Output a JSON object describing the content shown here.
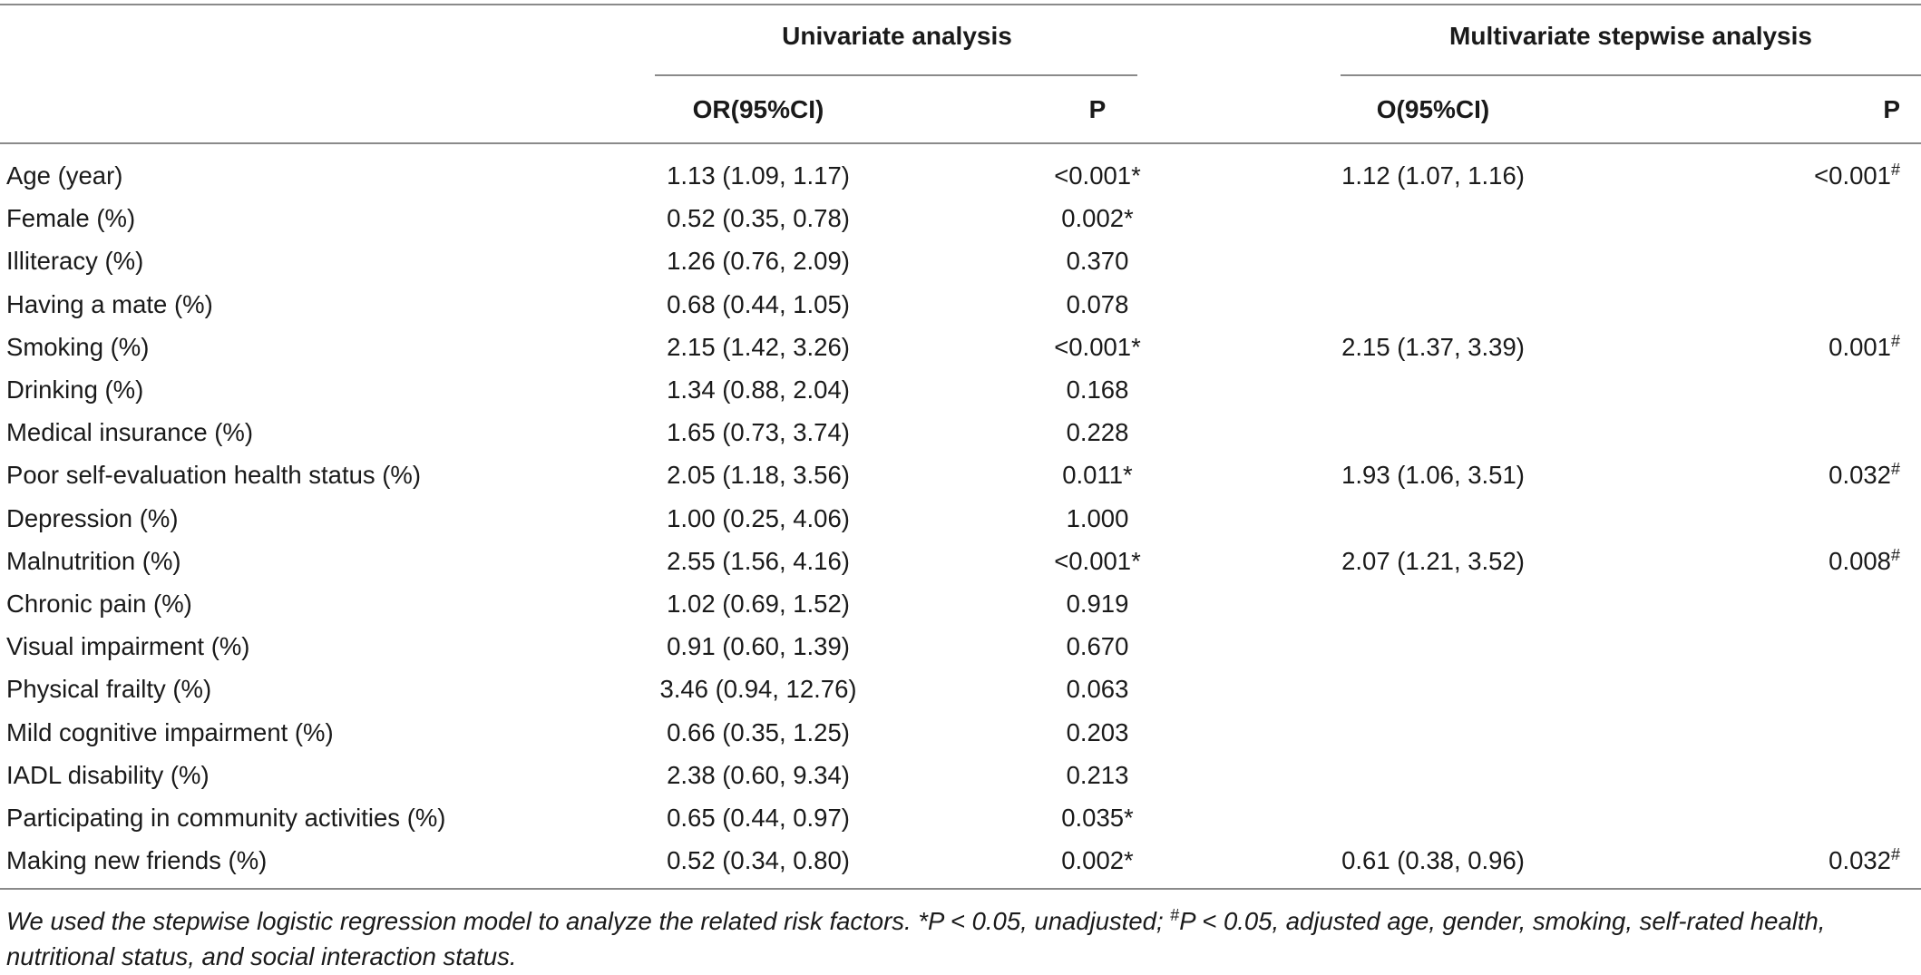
{
  "header": {
    "univariate_title": "Univariate analysis",
    "multivariate_title": "Multivariate stepwise analysis",
    "uni_or_label": "OR(95%CI)",
    "uni_p_label": "P",
    "multi_or_label": "O(95%CI)",
    "multi_p_label": "P"
  },
  "rows": [
    {
      "variable": "Age (year)",
      "uni_or": "1.13 (1.09, 1.17)",
      "uni_p": "<0.001*",
      "multi_or": "1.12 (1.07, 1.16)",
      "multi_p": "<0.001",
      "multi_mark": "#"
    },
    {
      "variable": "Female (%)",
      "uni_or": "0.52 (0.35, 0.78)",
      "uni_p": "0.002*",
      "multi_or": "",
      "multi_p": "",
      "multi_mark": ""
    },
    {
      "variable": "Illiteracy (%)",
      "uni_or": "1.26 (0.76, 2.09)",
      "uni_p": "0.370",
      "multi_or": "",
      "multi_p": "",
      "multi_mark": ""
    },
    {
      "variable": "Having a mate (%)",
      "uni_or": "0.68 (0.44, 1.05)",
      "uni_p": "0.078",
      "multi_or": "",
      "multi_p": "",
      "multi_mark": ""
    },
    {
      "variable": "Smoking (%)",
      "uni_or": "2.15 (1.42, 3.26)",
      "uni_p": "<0.001*",
      "multi_or": "2.15 (1.37, 3.39)",
      "multi_p": "0.001",
      "multi_mark": "#"
    },
    {
      "variable": "Drinking (%)",
      "uni_or": "1.34 (0.88, 2.04)",
      "uni_p": "0.168",
      "multi_or": "",
      "multi_p": "",
      "multi_mark": ""
    },
    {
      "variable": "Medical insurance (%)",
      "uni_or": "1.65 (0.73, 3.74)",
      "uni_p": "0.228",
      "multi_or": "",
      "multi_p": "",
      "multi_mark": ""
    },
    {
      "variable": "Poor self-evaluation health status (%)",
      "uni_or": "2.05 (1.18, 3.56)",
      "uni_p": "0.011*",
      "multi_or": "1.93 (1.06, 3.51)",
      "multi_p": "0.032",
      "multi_mark": "#"
    },
    {
      "variable": "Depression (%)",
      "uni_or": "1.00 (0.25, 4.06)",
      "uni_p": "1.000",
      "multi_or": "",
      "multi_p": "",
      "multi_mark": ""
    },
    {
      "variable": "Malnutrition (%)",
      "uni_or": "2.55 (1.56, 4.16)",
      "uni_p": "<0.001*",
      "multi_or": "2.07 (1.21, 3.52)",
      "multi_p": "0.008",
      "multi_mark": "#"
    },
    {
      "variable": "Chronic pain (%)",
      "uni_or": "1.02 (0.69, 1.52)",
      "uni_p": "0.919",
      "multi_or": "",
      "multi_p": "",
      "multi_mark": ""
    },
    {
      "variable": "Visual impairment (%)",
      "uni_or": "0.91 (0.60, 1.39)",
      "uni_p": "0.670",
      "multi_or": "",
      "multi_p": "",
      "multi_mark": ""
    },
    {
      "variable": "Physical frailty (%)",
      "uni_or": "3.46 (0.94, 12.76)",
      "uni_p": "0.063",
      "multi_or": "",
      "multi_p": "",
      "multi_mark": ""
    },
    {
      "variable": "Mild cognitive impairment (%)",
      "uni_or": "0.66 (0.35, 1.25)",
      "uni_p": "0.203",
      "multi_or": "",
      "multi_p": "",
      "multi_mark": ""
    },
    {
      "variable": "IADL disability (%)",
      "uni_or": "2.38 (0.60, 9.34)",
      "uni_p": "0.213",
      "multi_or": "",
      "multi_p": "",
      "multi_mark": ""
    },
    {
      "variable": "Participating in community activities (%)",
      "uni_or": "0.65 (0.44, 0.97)",
      "uni_p": "0.035*",
      "multi_or": "",
      "multi_p": "",
      "multi_mark": ""
    },
    {
      "variable": "Making new friends (%)",
      "uni_or": "0.52 (0.34, 0.80)",
      "uni_p": "0.002*",
      "multi_or": "0.61 (0.38, 0.96)",
      "multi_p": "0.032",
      "multi_mark": "#"
    }
  ],
  "footnote": {
    "part1": "We used the stepwise logistic regression model to analyze the related risk factors. *P < 0.05, unadjusted; ",
    "mark": "#",
    "part2": "P < 0.05, adjusted age, gender, smoking, self-rated health, nutritional status, and social interaction status."
  }
}
